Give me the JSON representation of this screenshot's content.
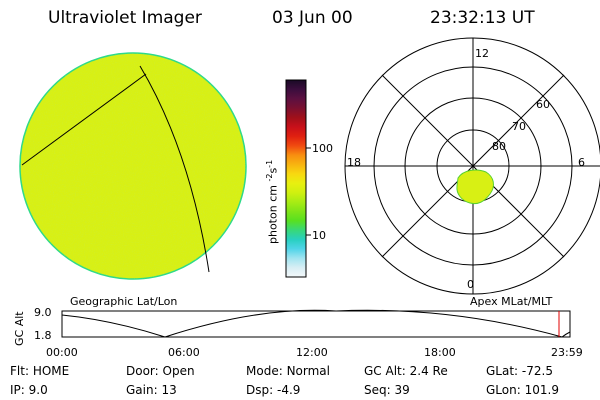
{
  "header": {
    "instrument": "Ultraviolet Imager",
    "date": "03 Jun 00",
    "time": "23:32:13 UT"
  },
  "colors": {
    "disk_fill": "#d8f014",
    "disk_edge": "#2bd98a",
    "oval_fill": "#d8f014"
  },
  "colorbar": {
    "unit_label": "photon cm",
    "unit_exp1": "-2",
    "unit_mid": "s",
    "unit_exp2": "-1",
    "tick_100": "100",
    "tick_10": "10",
    "stops": [
      "#1a0a26",
      "#3b0d3d",
      "#5c1040",
      "#7a1030",
      "#a0101a",
      "#c8101a",
      "#e02010",
      "#f04a10",
      "#f88e10",
      "#f8b410",
      "#f8d810",
      "#e8f010",
      "#d0f010",
      "#a8ec14",
      "#80e418",
      "#58e020",
      "#38d878",
      "#28d0c0",
      "#50d4e8",
      "#a0e4f0",
      "#d8eef4",
      "#f4f8fa"
    ]
  },
  "polar": {
    "mlt_labels": {
      "top": "12",
      "left": "18",
      "right": "6",
      "bottom": "0"
    },
    "lat_labels": [
      "60",
      "70",
      "80"
    ]
  },
  "captions": {
    "left": "Geographic Lat/Lon",
    "right": "Apex MLat/MLT"
  },
  "altplot": {
    "axis_label": "GC Alt",
    "y_top": "9.0",
    "y_bottom": "1.8",
    "x_ticks": [
      "00:00",
      "06:00",
      "12:00",
      "18:00",
      "23:59"
    ]
  },
  "footer": {
    "row1": [
      {
        "label": "Flt:",
        "value": "HOME"
      },
      {
        "label": "Door:",
        "value": "Open"
      },
      {
        "label": "Mode:",
        "value": "Normal"
      },
      {
        "label": "GC Alt:",
        "value": "2.4 Re"
      },
      {
        "label": "GLat:",
        "value": "-72.5"
      }
    ],
    "row2": [
      {
        "label": "IP:",
        "value": "9.0"
      },
      {
        "label": "Gain:",
        "value": "13"
      },
      {
        "label": "Dsp:",
        "value": "-4.9"
      },
      {
        "label": "Seq:",
        "value": "39"
      },
      {
        "label": "GLon:",
        "value": "101.9"
      }
    ]
  }
}
